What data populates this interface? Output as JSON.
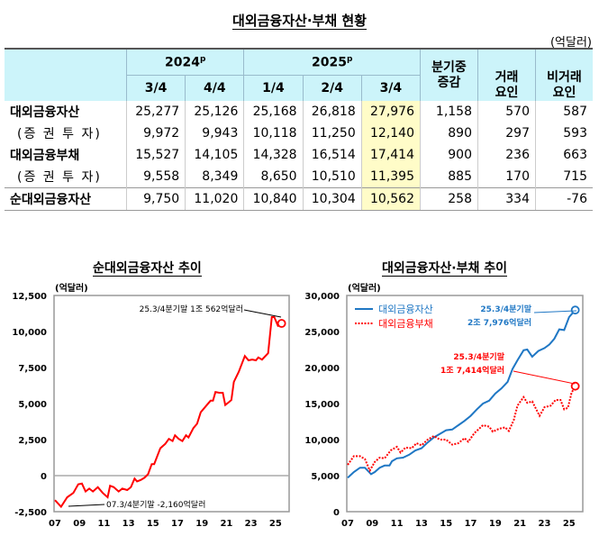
{
  "title": "대외금융자산·부채 현황",
  "unit": "(억달러)",
  "table": {
    "years": [
      {
        "label": "2024",
        "sup": "p"
      },
      {
        "label": "2025",
        "sup": "p"
      }
    ],
    "quarters": [
      "3/4",
      "4/4",
      "1/4",
      "2/4",
      "3/4"
    ],
    "change_header": "분기중\n증감",
    "trade_header": "거래\n요인",
    "nontrade_header": "비거래\n요인",
    "rows": [
      {
        "label": "대외금융자산",
        "sub": false,
        "values": [
          "25,277",
          "25,126",
          "25,168",
          "26,818",
          "27,976",
          "1,158",
          "570",
          "587"
        ]
      },
      {
        "label": "(증 권 투 자)",
        "sub": true,
        "values": [
          "9,972",
          "9,943",
          "10,118",
          "11,250",
          "12,140",
          "890",
          "297",
          "593"
        ]
      },
      {
        "label": "대외금융부채",
        "sub": false,
        "values": [
          "15,527",
          "14,105",
          "14,328",
          "16,514",
          "17,414",
          "900",
          "236",
          "663"
        ]
      },
      {
        "label": "(증 권 투 자)",
        "sub": true,
        "values": [
          "9,558",
          "8,349",
          "8,650",
          "10,510",
          "11,395",
          "885",
          "170",
          "715"
        ]
      },
      {
        "label": "순대외금융자산",
        "sub": false,
        "values": [
          "9,750",
          "11,020",
          "10,840",
          "10,304",
          "10,562",
          "258",
          "334",
          "-76"
        ]
      }
    ],
    "highlight_color": "#fffcc8",
    "header_color": "#ccf4fa"
  },
  "chart_data": [
    {
      "type": "line",
      "title": "순대외금융자산 추이",
      "ylabel": "(억달러)",
      "ylim": [
        -2500,
        12500
      ],
      "yticks": [
        "12,500",
        "10,000",
        "7,500",
        "5,000",
        "2,500",
        "0",
        "-2,500"
      ],
      "ytick_values": [
        12500,
        10000,
        7500,
        5000,
        2500,
        0,
        -2500
      ],
      "xticks": [
        "07",
        "09",
        "11",
        "13",
        "15",
        "17",
        "19",
        "21",
        "23",
        "25"
      ],
      "xlim": [
        2007,
        2025.6
      ],
      "series": [
        {
          "color": "#ff0000",
          "style": "solid",
          "points": [
            [
              2007,
              -1700
            ],
            [
              2007.5,
              -2160
            ],
            [
              2008,
              -1500
            ],
            [
              2008.5,
              -1200
            ],
            [
              2008.9,
              -600
            ],
            [
              2009.2,
              -550
            ],
            [
              2009.5,
              -1100
            ],
            [
              2009.8,
              -900
            ],
            [
              2010.1,
              -1100
            ],
            [
              2010.5,
              -800
            ],
            [
              2010.9,
              -1200
            ],
            [
              2011.3,
              -1500
            ],
            [
              2011.5,
              -700
            ],
            [
              2011.8,
              -800
            ],
            [
              2012.2,
              -1100
            ],
            [
              2012.5,
              -900
            ],
            [
              2012.9,
              -1000
            ],
            [
              2013.2,
              -800
            ],
            [
              2013.5,
              -200
            ],
            [
              2013.7,
              -400
            ],
            [
              2014,
              -300
            ],
            [
              2014.3,
              -150
            ],
            [
              2014.6,
              100
            ],
            [
              2014.9,
              800
            ],
            [
              2015.1,
              800
            ],
            [
              2015.6,
              1900
            ],
            [
              2016,
              2200
            ],
            [
              2016.3,
              2550
            ],
            [
              2016.6,
              2400
            ],
            [
              2016.8,
              2800
            ],
            [
              2017.1,
              2550
            ],
            [
              2017.4,
              2400
            ],
            [
              2017.7,
              2800
            ],
            [
              2017.9,
              2650
            ],
            [
              2018.3,
              3300
            ],
            [
              2018.6,
              3600
            ],
            [
              2018.9,
              4400
            ],
            [
              2019.3,
              4800
            ],
            [
              2019.7,
              5200
            ],
            [
              2019.9,
              5200
            ],
            [
              2020.1,
              5800
            ],
            [
              2020.4,
              5750
            ],
            [
              2020.7,
              5750
            ],
            [
              2020.9,
              4900
            ],
            [
              2021.2,
              5100
            ],
            [
              2021.4,
              5250
            ],
            [
              2021.6,
              6500
            ],
            [
              2022,
              7200
            ],
            [
              2022.5,
              8300
            ],
            [
              2022.8,
              8000
            ],
            [
              2023.1,
              8050
            ],
            [
              2023.4,
              8000
            ],
            [
              2023.6,
              8200
            ],
            [
              2023.9,
              8050
            ],
            [
              2024.4,
              8500
            ],
            [
              2024.7,
              11000
            ],
            [
              2024.9,
              11000
            ],
            [
              2025.2,
              10400
            ],
            [
              2025.5,
              10562
            ]
          ]
        }
      ],
      "annotations": [
        "25.3/4분기말 1조 562억달러",
        "07.3/4분기말 -2,160억달러"
      ]
    },
    {
      "type": "line",
      "title": "대외금융자산·부채 추이",
      "ylabel": "(억달러)",
      "ylim": [
        0,
        30000
      ],
      "yticks": [
        "30,000",
        "25,000",
        "20,000",
        "15,000",
        "10,000",
        "5,000",
        "0"
      ],
      "ytick_values": [
        30000,
        25000,
        20000,
        15000,
        10000,
        5000,
        0
      ],
      "xticks": [
        "07",
        "09",
        "11",
        "13",
        "15",
        "17",
        "19",
        "21",
        "23",
        "25"
      ],
      "xlim": [
        2007,
        2025.6
      ],
      "legend": "top-left",
      "series": [
        {
          "name": "대외금융자산",
          "color": "#1f77c4",
          "style": "solid",
          "points": [
            [
              2007,
              4700
            ],
            [
              2007.5,
              5500
            ],
            [
              2008,
              6100
            ],
            [
              2008.4,
              6100
            ],
            [
              2008.9,
              5200
            ],
            [
              2009.2,
              5500
            ],
            [
              2009.6,
              6100
            ],
            [
              2010,
              6400
            ],
            [
              2010.4,
              6400
            ],
            [
              2010.6,
              7000
            ],
            [
              2011,
              7400
            ],
            [
              2011.5,
              7500
            ],
            [
              2012,
              7900
            ],
            [
              2012.5,
              8500
            ],
            [
              2013,
              8800
            ],
            [
              2013.5,
              9600
            ],
            [
              2014,
              10300
            ],
            [
              2014.5,
              10800
            ],
            [
              2015,
              11300
            ],
            [
              2015.5,
              11400
            ],
            [
              2016,
              12000
            ],
            [
              2016.5,
              12600
            ],
            [
              2017,
              13300
            ],
            [
              2017.5,
              14200
            ],
            [
              2018,
              15000
            ],
            [
              2018.5,
              15400
            ],
            [
              2019,
              16400
            ],
            [
              2019.5,
              17100
            ],
            [
              2020,
              18000
            ],
            [
              2020.4,
              19800
            ],
            [
              2020.8,
              21000
            ],
            [
              2021.3,
              22400
            ],
            [
              2021.6,
              22500
            ],
            [
              2022,
              21500
            ],
            [
              2022.5,
              22300
            ],
            [
              2023,
              22700
            ],
            [
              2023.4,
              23200
            ],
            [
              2023.8,
              24000
            ],
            [
              2024.2,
              25300
            ],
            [
              2024.6,
              25200
            ],
            [
              2025,
              27000
            ],
            [
              2025.5,
              27976
            ]
          ]
        },
        {
          "name": "대외금융부채",
          "color": "#ff0000",
          "style": "dotted",
          "points": [
            [
              2007,
              6500
            ],
            [
              2007.5,
              7700
            ],
            [
              2008,
              7700
            ],
            [
              2008.4,
              7300
            ],
            [
              2008.8,
              5700
            ],
            [
              2009.2,
              6900
            ],
            [
              2009.6,
              7500
            ],
            [
              2010,
              7400
            ],
            [
              2010.5,
              8500
            ],
            [
              2011,
              9000
            ],
            [
              2011.3,
              8200
            ],
            [
              2011.7,
              8900
            ],
            [
              2012.2,
              8800
            ],
            [
              2012.6,
              9500
            ],
            [
              2013,
              9200
            ],
            [
              2013.5,
              10000
            ],
            [
              2014,
              10500
            ],
            [
              2014.5,
              10000
            ],
            [
              2015,
              10000
            ],
            [
              2015.5,
              9300
            ],
            [
              2016,
              9500
            ],
            [
              2016.5,
              10200
            ],
            [
              2016.8,
              9700
            ],
            [
              2017.3,
              10900
            ],
            [
              2018,
              12000
            ],
            [
              2018.5,
              11800
            ],
            [
              2018.8,
              11100
            ],
            [
              2019.3,
              11500
            ],
            [
              2019.8,
              11700
            ],
            [
              2020.1,
              11200
            ],
            [
              2020.5,
              12700
            ],
            [
              2020.8,
              14700
            ],
            [
              2021.3,
              15900
            ],
            [
              2021.6,
              15100
            ],
            [
              2022,
              15300
            ],
            [
              2022.6,
              13300
            ],
            [
              2023,
              14500
            ],
            [
              2023.5,
              14700
            ],
            [
              2023.9,
              15500
            ],
            [
              2024.3,
              15500
            ],
            [
              2024.6,
              14200
            ],
            [
              2024.9,
              14400
            ],
            [
              2025.2,
              16500
            ],
            [
              2025.5,
              17414
            ]
          ]
        }
      ],
      "annotations": [
        {
          "line1": "25.3/4분기말",
          "line2": "2조 7,976억달러",
          "color": "#1f77c4"
        },
        {
          "line1": "25.3/4분기말",
          "line2": "1조 7,414억달러",
          "color": "#ff0000"
        }
      ]
    }
  ]
}
